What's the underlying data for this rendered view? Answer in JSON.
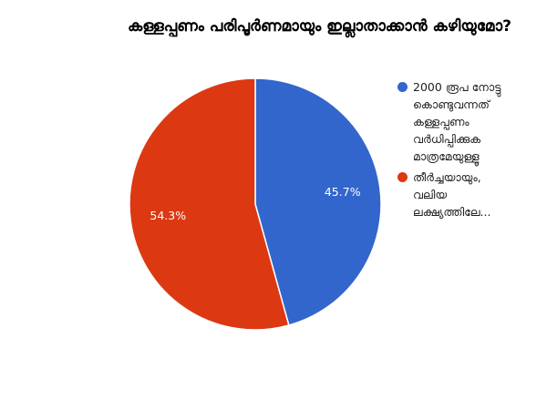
{
  "chart_data": {
    "type": "pie",
    "title": "കള്ളപ്പണം പരിപൂർണമായും ഇല്ലാതാക്കാൻ കഴിയുമോ?",
    "slices": [
      {
        "legend_lines": [
          "2000 രൂപ നോട്ടു",
          "കൊണ്ടുവന്നത്",
          "കള്ളപ്പണം",
          "വർധിപ്പിക്കുക",
          "മാത്രമേയുള്ളൂ"
        ],
        "value": 45.7,
        "label": "45.7%",
        "color": "#3366cc"
      },
      {
        "legend_lines": [
          "തീർച്ചയായും,",
          "വലിയ",
          "ലക്ഷ്യത്തിലേ..."
        ],
        "value": 54.3,
        "label": "54.3%",
        "color": "#dc3912"
      }
    ],
    "start": "top",
    "direction": "clockwise",
    "legend_position": "right"
  }
}
